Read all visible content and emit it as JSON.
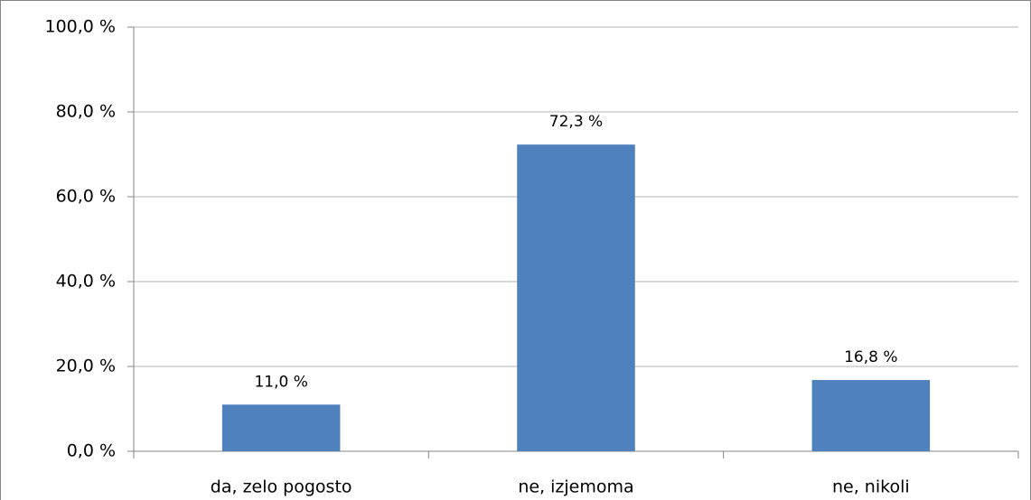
{
  "chart_data": {
    "type": "bar",
    "categories": [
      "da, zelo pogosto",
      "ne, izjemoma",
      "ne, nikoli"
    ],
    "values": [
      11.0,
      72.3,
      16.8
    ],
    "value_labels": [
      "11,0 %",
      "72,3 %",
      "16,8 %"
    ],
    "color": "#4f81bd",
    "ylim": [
      0,
      100
    ],
    "yticks": [
      {
        "value": 0,
        "label": "0,0 %"
      },
      {
        "value": 20,
        "label": "20,0 %"
      },
      {
        "value": 40,
        "label": "40,0 %"
      },
      {
        "value": 60,
        "label": "60,0 %"
      },
      {
        "value": 80,
        "label": "80,0 %"
      },
      {
        "value": 100,
        "label": "100,0 %"
      }
    ],
    "grid": true
  }
}
